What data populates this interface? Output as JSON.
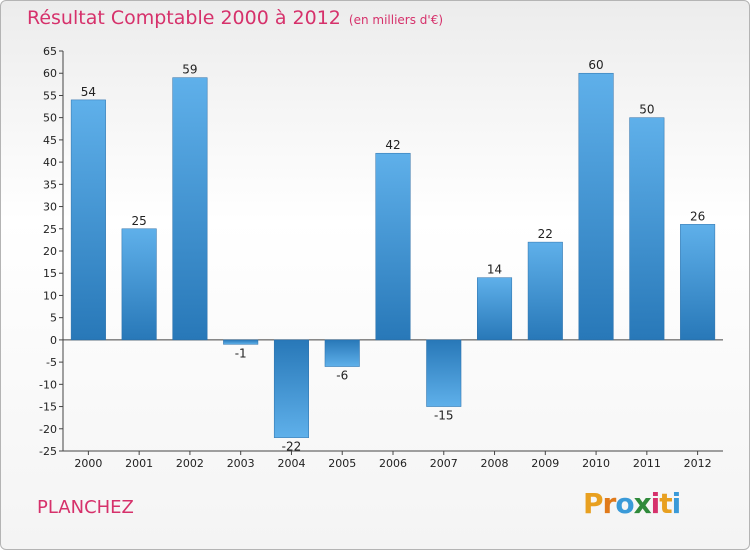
{
  "title": "Résultat Comptable 2000 à 2012",
  "unit": "(en milliers d'€)",
  "commune": "PLANCHEZ",
  "brand": {
    "letters": [
      "P",
      "r",
      "o",
      "x",
      "i",
      "t",
      "i"
    ],
    "colors": [
      "#e8a020",
      "#e07a1a",
      "#3a9ad8",
      "#2f8a3a",
      "#d6316b",
      "#e8a020",
      "#3a9ad8"
    ]
  },
  "colors": {
    "bar_light": "#5fb0ea",
    "bar_dark": "#2878b8",
    "accent": "#d6316b"
  },
  "chart_data": {
    "type": "bar",
    "title": "Résultat Comptable 2000 à 2012",
    "subtitle": "(en milliers d'€)",
    "xlabel": "",
    "ylabel": "",
    "categories": [
      "2000",
      "2001",
      "2002",
      "2003",
      "2004",
      "2005",
      "2006",
      "2007",
      "2008",
      "2009",
      "2010",
      "2011",
      "2012"
    ],
    "values": [
      54,
      25,
      59,
      -1,
      -22,
      -6,
      42,
      -15,
      14,
      22,
      60,
      50,
      26
    ],
    "ylim": [
      -25,
      65
    ],
    "yticks": [
      -25,
      -20,
      -15,
      -10,
      -5,
      0,
      5,
      10,
      15,
      20,
      25,
      30,
      35,
      40,
      45,
      50,
      55,
      60,
      65
    ],
    "grid": false,
    "legend": "none"
  }
}
